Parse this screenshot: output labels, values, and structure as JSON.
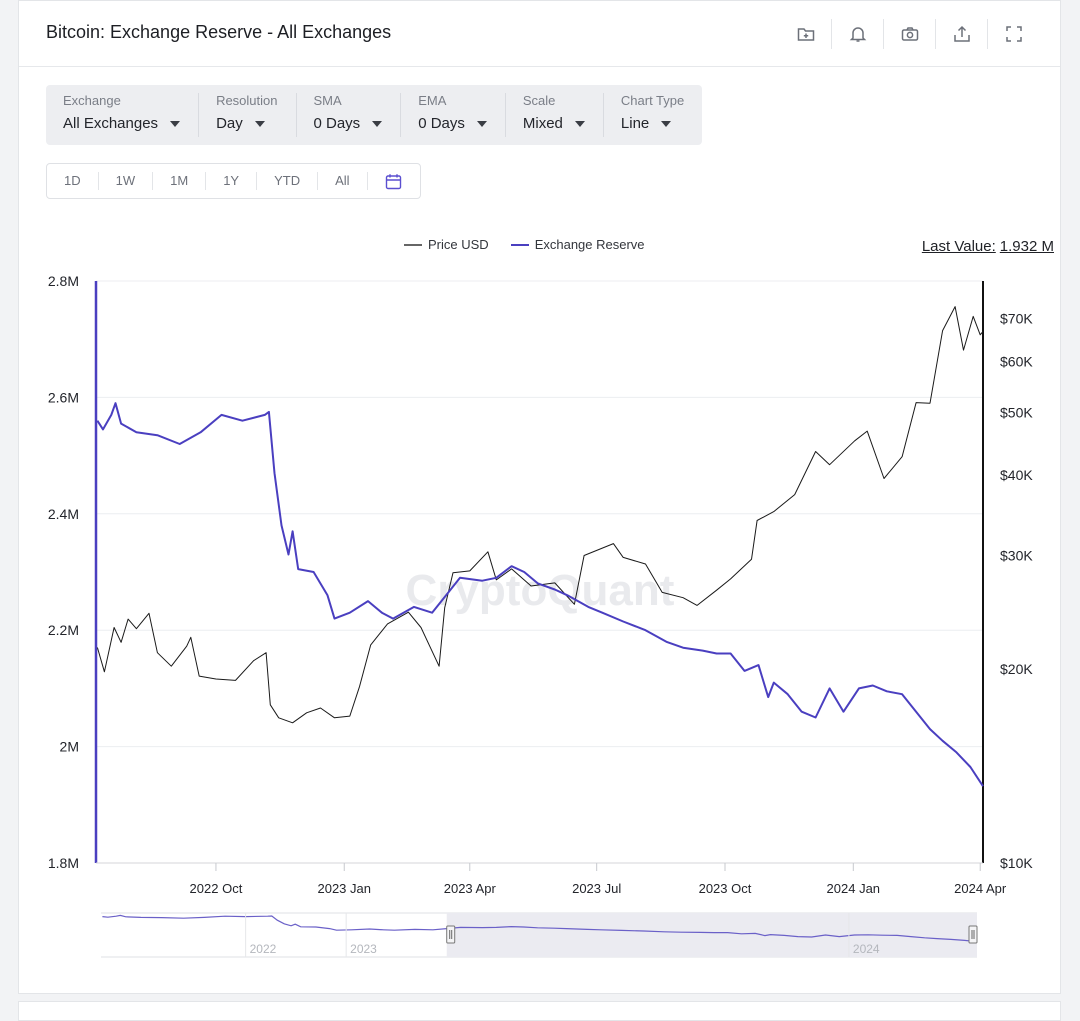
{
  "header": {
    "title": "Bitcoin: Exchange Reserve - All Exchanges",
    "icons": [
      "add-to-folder-icon",
      "bell-icon",
      "camera-icon",
      "share-icon",
      "fullscreen-icon"
    ]
  },
  "filters": [
    {
      "label": "Exchange",
      "value": "All Exchanges"
    },
    {
      "label": "Resolution",
      "value": "Day"
    },
    {
      "label": "SMA",
      "value": "0 Days"
    },
    {
      "label": "EMA",
      "value": "0 Days"
    },
    {
      "label": "Scale",
      "value": "Mixed"
    },
    {
      "label": "Chart Type",
      "value": "Line"
    }
  ],
  "ranges": [
    "1D",
    "1W",
    "1M",
    "1Y",
    "YTD",
    "All"
  ],
  "legend": {
    "price": "Price USD",
    "reserve": "Exchange Reserve"
  },
  "last_value": {
    "label": "Last Value:",
    "value": "1.932 M"
  },
  "watermark": "CryptoQuant",
  "colors": {
    "price": "#1a1a1a",
    "reserve": "#4a3fc0",
    "navigator_fill": "#ebebf1"
  },
  "chart_data": {
    "type": "line",
    "title": "Bitcoin: Exchange Reserve - All Exchanges",
    "x_range": [
      "2022-07-07",
      "2024-04-03"
    ],
    "x_ticks": [
      {
        "date": "2022-10-01",
        "label": "2022 Oct"
      },
      {
        "date": "2023-01-01",
        "label": "2023 Jan"
      },
      {
        "date": "2023-04-01",
        "label": "2023 Apr"
      },
      {
        "date": "2023-07-01",
        "label": "2023 Jul"
      },
      {
        "date": "2023-10-01",
        "label": "2023 Oct"
      },
      {
        "date": "2024-01-01",
        "label": "2024 Jan"
      },
      {
        "date": "2024-04-01",
        "label": "2024 Apr"
      }
    ],
    "y_left": {
      "label": "Exchange Reserve",
      "scale": "linear",
      "range": [
        1800000,
        2800000
      ],
      "ticks": [
        {
          "value": 1800000,
          "label": "1.8M"
        },
        {
          "value": 2000000,
          "label": "2M"
        },
        {
          "value": 2200000,
          "label": "2.2M"
        },
        {
          "value": 2400000,
          "label": "2.4M"
        },
        {
          "value": 2600000,
          "label": "2.6M"
        },
        {
          "value": 2800000,
          "label": "2.8M"
        }
      ]
    },
    "y_right": {
      "label": "Price USD",
      "scale": "log",
      "range": [
        10000,
        80000
      ],
      "ticks": [
        {
          "value": 10000,
          "label": "$10K"
        },
        {
          "value": 20000,
          "label": "$20K"
        },
        {
          "value": 30000,
          "label": "$30K"
        },
        {
          "value": 40000,
          "label": "$40K"
        },
        {
          "value": 50000,
          "label": "$50K"
        },
        {
          "value": 60000,
          "label": "$60K"
        },
        {
          "value": 70000,
          "label": "$70K"
        }
      ]
    },
    "grid": true,
    "series": [
      {
        "name": "Exchange Reserve",
        "axis": "left",
        "points": [
          [
            "2022-07-08",
            2560000
          ],
          [
            "2022-07-12",
            2545000
          ],
          [
            "2022-07-18",
            2570000
          ],
          [
            "2022-07-21",
            2590000
          ],
          [
            "2022-07-25",
            2555000
          ],
          [
            "2022-08-05",
            2540000
          ],
          [
            "2022-08-20",
            2535000
          ],
          [
            "2022-09-05",
            2520000
          ],
          [
            "2022-09-20",
            2540000
          ],
          [
            "2022-10-05",
            2570000
          ],
          [
            "2022-10-20",
            2560000
          ],
          [
            "2022-11-05",
            2570000
          ],
          [
            "2022-11-08",
            2575000
          ],
          [
            "2022-11-12",
            2470000
          ],
          [
            "2022-11-17",
            2380000
          ],
          [
            "2022-11-22",
            2330000
          ],
          [
            "2022-11-25",
            2370000
          ],
          [
            "2022-11-29",
            2305000
          ],
          [
            "2022-12-10",
            2300000
          ],
          [
            "2022-12-20",
            2260000
          ],
          [
            "2022-12-25",
            2220000
          ],
          [
            "2023-01-05",
            2230000
          ],
          [
            "2023-01-18",
            2250000
          ],
          [
            "2023-01-28",
            2230000
          ],
          [
            "2023-02-05",
            2220000
          ],
          [
            "2023-02-20",
            2240000
          ],
          [
            "2023-03-05",
            2230000
          ],
          [
            "2023-03-15",
            2260000
          ],
          [
            "2023-03-25",
            2290000
          ],
          [
            "2023-04-10",
            2285000
          ],
          [
            "2023-04-20",
            2290000
          ],
          [
            "2023-05-01",
            2310000
          ],
          [
            "2023-05-10",
            2300000
          ],
          [
            "2023-05-20",
            2280000
          ],
          [
            "2023-06-01",
            2270000
          ],
          [
            "2023-06-10",
            2260000
          ],
          [
            "2023-06-25",
            2240000
          ],
          [
            "2023-07-05",
            2230000
          ],
          [
            "2023-07-20",
            2215000
          ],
          [
            "2023-08-05",
            2200000
          ],
          [
            "2023-08-20",
            2180000
          ],
          [
            "2023-09-01",
            2170000
          ],
          [
            "2023-09-15",
            2165000
          ],
          [
            "2023-09-25",
            2160000
          ],
          [
            "2023-10-05",
            2160000
          ],
          [
            "2023-10-15",
            2130000
          ],
          [
            "2023-10-25",
            2140000
          ],
          [
            "2023-11-01",
            2085000
          ],
          [
            "2023-11-05",
            2110000
          ],
          [
            "2023-11-15",
            2090000
          ],
          [
            "2023-11-25",
            2060000
          ],
          [
            "2023-12-05",
            2050000
          ],
          [
            "2023-12-15",
            2100000
          ],
          [
            "2023-12-25",
            2060000
          ],
          [
            "2024-01-05",
            2100000
          ],
          [
            "2024-01-15",
            2105000
          ],
          [
            "2024-01-25",
            2095000
          ],
          [
            "2024-02-05",
            2090000
          ],
          [
            "2024-02-15",
            2060000
          ],
          [
            "2024-02-25",
            2030000
          ],
          [
            "2024-03-05",
            2010000
          ],
          [
            "2024-03-15",
            1990000
          ],
          [
            "2024-03-25",
            1965000
          ],
          [
            "2024-04-03",
            1932000
          ]
        ]
      },
      {
        "name": "Price USD",
        "axis": "right",
        "points": [
          [
            "2022-07-08",
            21600
          ],
          [
            "2022-07-13",
            19800
          ],
          [
            "2022-07-20",
            23200
          ],
          [
            "2022-07-25",
            22000
          ],
          [
            "2022-07-30",
            23900
          ],
          [
            "2022-08-05",
            23100
          ],
          [
            "2022-08-14",
            24400
          ],
          [
            "2022-08-20",
            21200
          ],
          [
            "2022-08-30",
            20200
          ],
          [
            "2022-09-10",
            21700
          ],
          [
            "2022-09-13",
            22400
          ],
          [
            "2022-09-19",
            19500
          ],
          [
            "2022-10-01",
            19300
          ],
          [
            "2022-10-15",
            19200
          ],
          [
            "2022-10-28",
            20600
          ],
          [
            "2022-11-06",
            21200
          ],
          [
            "2022-11-09",
            17600
          ],
          [
            "2022-11-15",
            16800
          ],
          [
            "2022-11-25",
            16500
          ],
          [
            "2022-12-05",
            17100
          ],
          [
            "2022-12-15",
            17400
          ],
          [
            "2022-12-25",
            16800
          ],
          [
            "2023-01-05",
            16900
          ],
          [
            "2023-01-12",
            18800
          ],
          [
            "2023-01-20",
            21800
          ],
          [
            "2023-02-01",
            23500
          ],
          [
            "2023-02-16",
            24500
          ],
          [
            "2023-02-25",
            23200
          ],
          [
            "2023-03-10",
            20200
          ],
          [
            "2023-03-14",
            24900
          ],
          [
            "2023-03-20",
            28200
          ],
          [
            "2023-04-01",
            28400
          ],
          [
            "2023-04-14",
            30400
          ],
          [
            "2023-04-20",
            27500
          ],
          [
            "2023-05-01",
            28600
          ],
          [
            "2023-05-15",
            26900
          ],
          [
            "2023-06-01",
            27200
          ],
          [
            "2023-06-15",
            25200
          ],
          [
            "2023-06-22",
            30000
          ],
          [
            "2023-07-13",
            31300
          ],
          [
            "2023-07-20",
            29800
          ],
          [
            "2023-08-05",
            29100
          ],
          [
            "2023-08-17",
            26300
          ],
          [
            "2023-09-01",
            25800
          ],
          [
            "2023-09-11",
            25100
          ],
          [
            "2023-09-25",
            26500
          ],
          [
            "2023-10-05",
            27600
          ],
          [
            "2023-10-20",
            29600
          ],
          [
            "2023-10-24",
            34000
          ],
          [
            "2023-11-05",
            35100
          ],
          [
            "2023-11-20",
            37300
          ],
          [
            "2023-12-05",
            43500
          ],
          [
            "2023-12-15",
            41500
          ],
          [
            "2024-01-02",
            45200
          ],
          [
            "2024-01-11",
            46800
          ],
          [
            "2024-01-23",
            39500
          ],
          [
            "2024-02-05",
            42700
          ],
          [
            "2024-02-15",
            51800
          ],
          [
            "2024-02-25",
            51700
          ],
          [
            "2024-03-05",
            67000
          ],
          [
            "2024-03-14",
            73000
          ],
          [
            "2024-03-20",
            62500
          ],
          [
            "2024-03-27",
            70500
          ],
          [
            "2024-04-01",
            66000
          ],
          [
            "2024-04-03",
            66800
          ]
        ]
      }
    ],
    "navigator": {
      "labels": [
        "2022",
        "2023",
        "2024"
      ],
      "selected_range": [
        "2023-03-15",
        "2024-04-03"
      ]
    }
  }
}
